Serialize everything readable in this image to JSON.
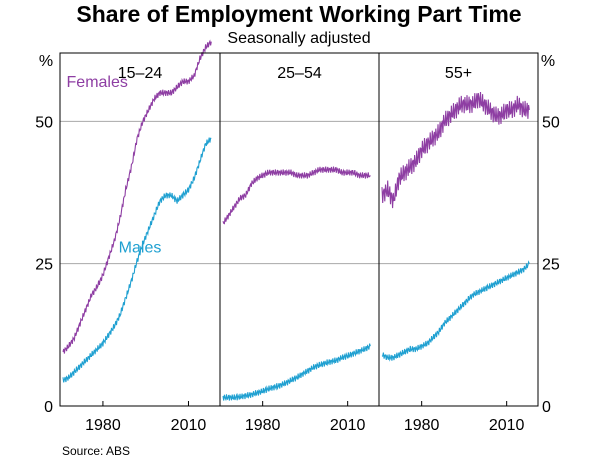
{
  "chart_data": {
    "type": "line",
    "title": "Share of Employment Working Part Time",
    "subtitle": "Seasonally adjusted",
    "y_unit": "%",
    "ylim": [
      0,
      62
    ],
    "y_ticks": [
      "0",
      "25",
      "50"
    ],
    "x_ticks": [
      "1980",
      "2010"
    ],
    "xlim": [
      1966,
      2020
    ],
    "grid": "horizontal",
    "source": "Source:     ABS",
    "colors": {
      "females": "#8e3ea3",
      "males": "#1fa0d1"
    },
    "panels": [
      {
        "title": "15–24",
        "annotations": [
          {
            "text": "Females",
            "series": "Females"
          },
          {
            "text": "Males",
            "series": "Males"
          }
        ],
        "series": [
          {
            "name": "Females",
            "color": "#8e3ea3",
            "x": [
              1966,
              1968,
              1970,
              1972,
              1974,
              1976,
              1978,
              1980,
              1982,
              1984,
              1986,
              1988,
              1990,
              1992,
              1994,
              1996,
              1998,
              2000,
              2002,
              2004,
              2006,
              2008,
              2010,
              2012,
              2014,
              2016,
              2018
            ],
            "y": [
              9.5,
              10.5,
              12,
              14.5,
              17,
              19.5,
              21,
              23,
              26,
              29,
              33,
              38,
              42,
              47,
              50,
              52,
              54,
              55,
              55,
              55,
              56,
              57,
              57,
              58,
              61,
              63,
              64
            ]
          },
          {
            "name": "Males",
            "color": "#1fa0d1",
            "x": [
              1966,
              1968,
              1970,
              1972,
              1974,
              1976,
              1978,
              1980,
              1982,
              1984,
              1986,
              1988,
              1990,
              1992,
              1994,
              1996,
              1998,
              2000,
              2002,
              2004,
              2006,
              2008,
              2010,
              2012,
              2014,
              2016,
              2018
            ],
            "y": [
              4.5,
              5,
              6,
              7,
              8,
              9,
              10,
              11,
              12.5,
              14,
              16,
              19,
              22,
              25.5,
              28.5,
              31,
              33.5,
              36,
              37,
              37,
              36,
              37,
              38,
              40,
              43,
              46,
              47
            ]
          }
        ]
      },
      {
        "title": "25–54",
        "annotations": [],
        "series": [
          {
            "name": "Females",
            "color": "#8e3ea3",
            "x": [
              1966,
              1968,
              1970,
              1972,
              1974,
              1976,
              1978,
              1980,
              1982,
              1984,
              1986,
              1988,
              1990,
              1992,
              1994,
              1996,
              1998,
              2000,
              2002,
              2004,
              2006,
              2008,
              2010,
              2012,
              2014,
              2016,
              2018
            ],
            "y": [
              32,
              33.5,
              35,
              36.5,
              37,
              39,
              40,
              40.5,
              41,
              41,
              41,
              41,
              41,
              40.5,
              40.5,
              40.5,
              41,
              41.5,
              41.5,
              41.5,
              41.5,
              41,
              41,
              41,
              40.5,
              40.5,
              40.5
            ]
          },
          {
            "name": "Males",
            "color": "#1fa0d1",
            "x": [
              1966,
              1968,
              1970,
              1972,
              1974,
              1976,
              1978,
              1980,
              1982,
              1984,
              1986,
              1988,
              1990,
              1992,
              1994,
              1996,
              1998,
              2000,
              2002,
              2004,
              2006,
              2008,
              2010,
              2012,
              2014,
              2016,
              2018
            ],
            "y": [
              1.5,
              1.5,
              1.5,
              1.6,
              1.8,
              2,
              2.3,
              2.6,
              3,
              3.3,
              3.6,
              4,
              4.5,
              5,
              5.6,
              6.2,
              6.8,
              7.2,
              7.5,
              7.8,
              8,
              8.5,
              8.8,
              9.2,
              9.6,
              10,
              10.5
            ]
          }
        ]
      },
      {
        "title": "55+",
        "annotations": [],
        "series": [
          {
            "name": "Females",
            "color": "#8e3ea3",
            "x": [
              1966,
              1968,
              1970,
              1972,
              1974,
              1976,
              1978,
              1980,
              1982,
              1984,
              1986,
              1988,
              1990,
              1992,
              1994,
              1996,
              1998,
              2000,
              2002,
              2004,
              2006,
              2008,
              2010,
              2012,
              2014,
              2016,
              2018
            ],
            "y": [
              37,
              38,
              36,
              40,
              41,
              42,
              43,
              45,
              46,
              47,
              48,
              50,
              51,
              52,
              53,
              53,
              53,
              54,
              53,
              52,
              51,
              51,
              52,
              52,
              53,
              52,
              52
            ]
          },
          {
            "name": "Males",
            "color": "#1fa0d1",
            "x": [
              1966,
              1968,
              1970,
              1972,
              1974,
              1976,
              1978,
              1980,
              1982,
              1984,
              1986,
              1988,
              1990,
              1992,
              1994,
              1996,
              1998,
              2000,
              2002,
              2004,
              2006,
              2008,
              2010,
              2012,
              2014,
              2016,
              2018
            ],
            "y": [
              9,
              8.5,
              8.5,
              9,
              9.5,
              10,
              10,
              10.5,
              11,
              12,
              13,
              14.5,
              15.5,
              16.5,
              17.5,
              18.5,
              19.5,
              20,
              20.5,
              21,
              21.5,
              22,
              22.5,
              23,
              23.5,
              24,
              25
            ]
          }
        ]
      }
    ]
  }
}
